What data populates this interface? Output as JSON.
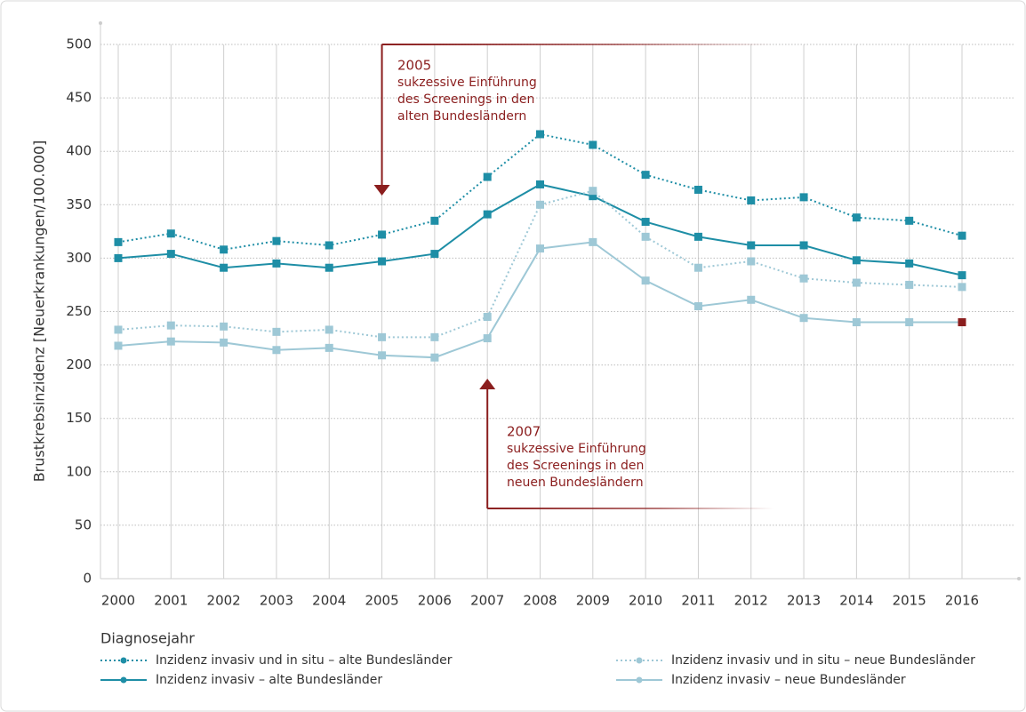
{
  "chart_data": {
    "type": "line",
    "y_label": "Brustkrebsinzidenz [Neuerkrankungen/100.000]",
    "x_label": "Diagnosejahr",
    "categories": [
      "2000",
      "2001",
      "2002",
      "2003",
      "2004",
      "2005",
      "2006",
      "2007",
      "2008",
      "2009",
      "2010",
      "2011",
      "2012",
      "2013",
      "2014",
      "2015",
      "2016"
    ],
    "series": [
      {
        "name": "Inzidenz invasiv und in situ – alte Bundesländer",
        "color": "#1e8ea6",
        "style": "dotted",
        "values": [
          315,
          323,
          308,
          316,
          312,
          322,
          335,
          376,
          416,
          406,
          378,
          364,
          354,
          357,
          338,
          335,
          321
        ]
      },
      {
        "name": "Inzidenz invasiv – alte Bundesländer",
        "color": "#1e8ea6",
        "style": "solid",
        "values": [
          300,
          304,
          291,
          295,
          291,
          297,
          304,
          341,
          369,
          358,
          334,
          320,
          312,
          312,
          298,
          295,
          284
        ]
      },
      {
        "name": "Inzidenz invasiv und in situ – neue Bundesländer",
        "color": "#9ec8d6",
        "style": "dotted",
        "values": [
          233,
          237,
          236,
          231,
          233,
          226,
          226,
          245,
          350,
          363,
          320,
          291,
          297,
          281,
          277,
          275,
          273
        ]
      },
      {
        "name": "Inzidenz invasiv – neue Bundesländer",
        "color": "#9ec8d6",
        "style": "solid",
        "values": [
          218,
          222,
          221,
          214,
          216,
          209,
          207,
          225,
          309,
          315,
          279,
          255,
          261,
          244,
          240,
          240,
          240
        ],
        "last_point_color": "#8b1e1e"
      }
    ],
    "ylim": [
      0,
      500
    ],
    "yticks": [
      0,
      50,
      100,
      150,
      200,
      250,
      300,
      350,
      400,
      450,
      500
    ],
    "grid": true,
    "annotations": [
      {
        "lines": [
          "2005",
          "sukzessive Einführung",
          "des Screenings in den",
          "alten Bundesländern"
        ],
        "color": "#8b1e1e"
      },
      {
        "lines": [
          "2007",
          "sukzessive Einführung",
          "des Screenings in den",
          "neuen Bundesländern"
        ],
        "color": "#8b1e1e"
      }
    ]
  }
}
